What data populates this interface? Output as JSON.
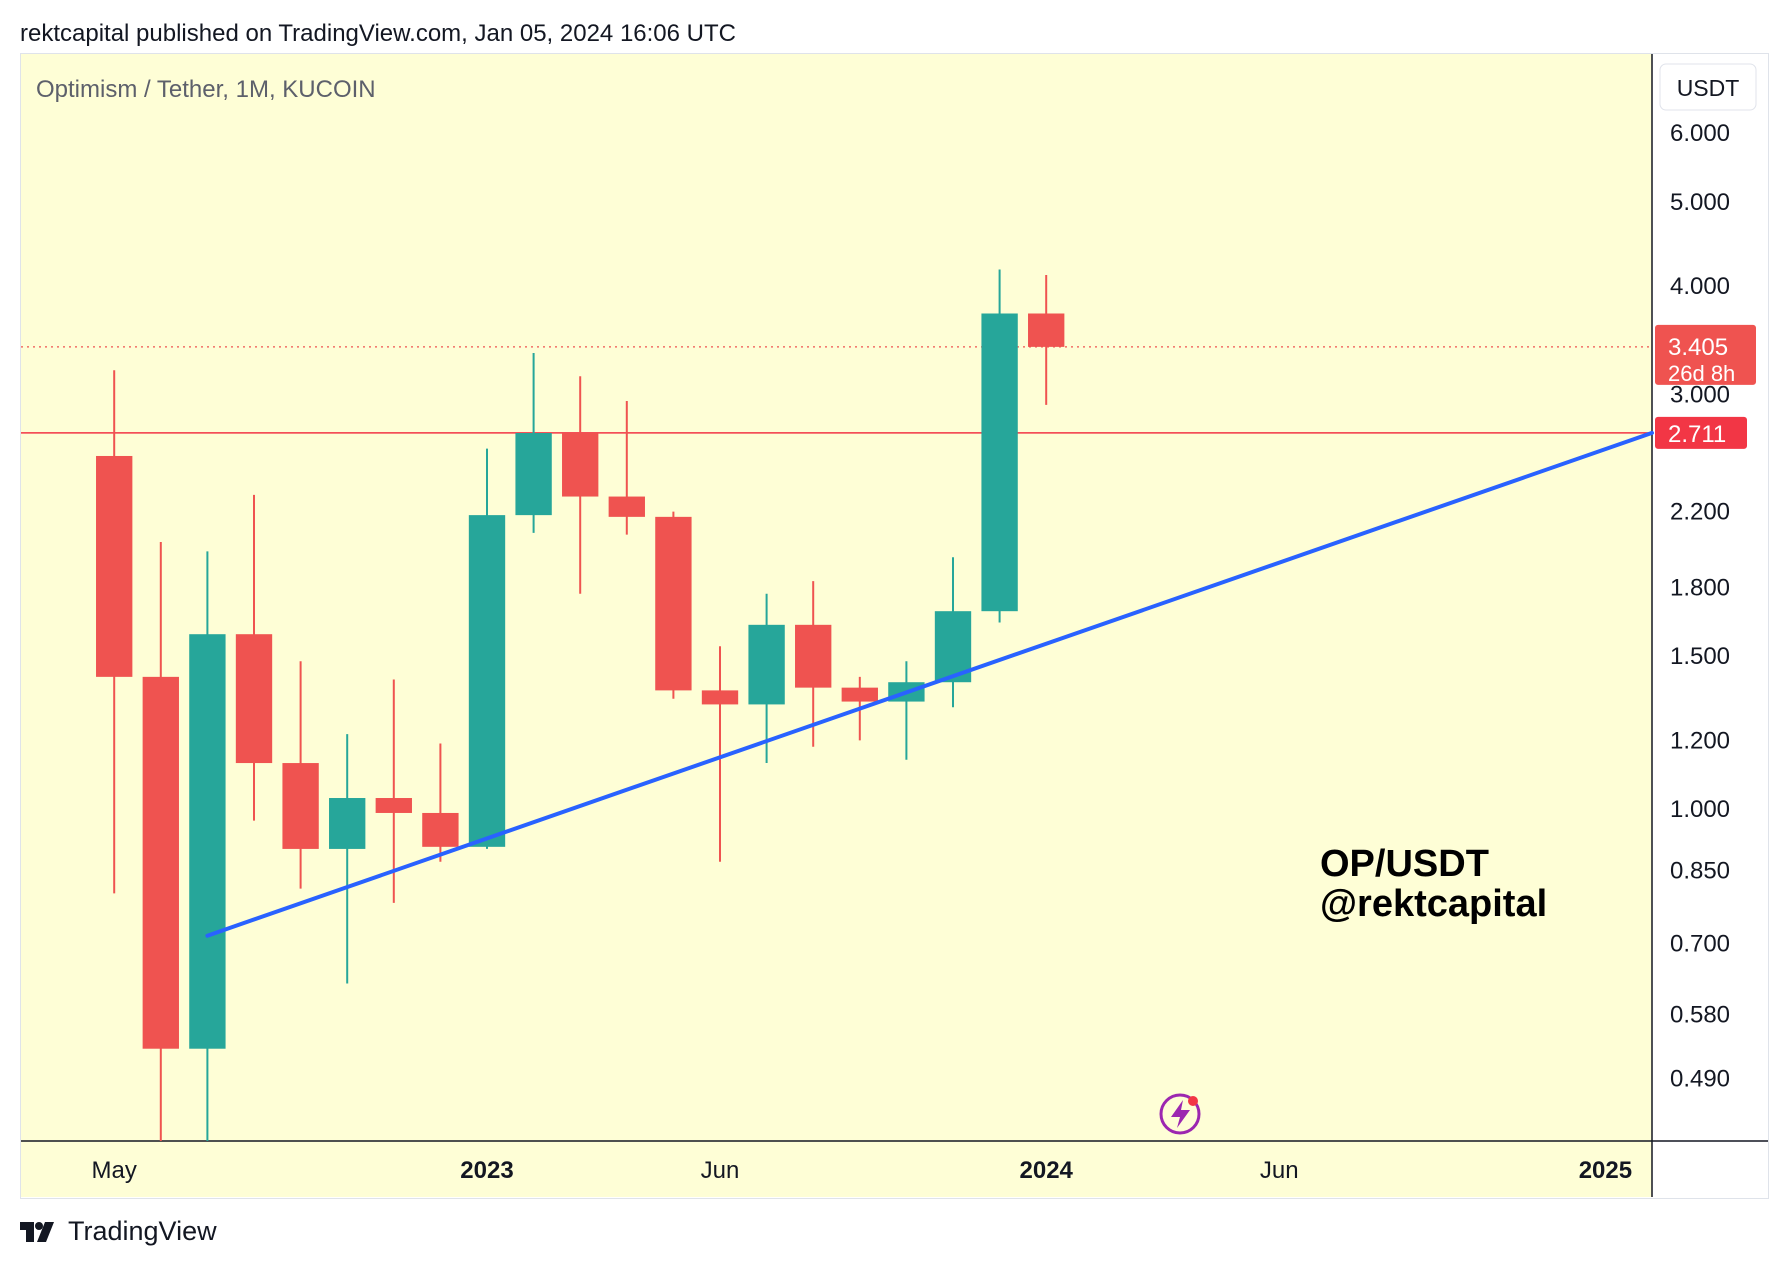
{
  "header": {
    "published_text": "rektcapital published on TradingView.com, Jan 05, 2024 16:06 UTC"
  },
  "footer": {
    "brand_label": "TradingView",
    "brand_icon": "tradingview-logo-icon"
  },
  "chart_data": {
    "type": "candlestick",
    "title": "Optimism / Tether, 1M, KUCOIN",
    "currency_label": "USDT",
    "watermark_lines": [
      "OP/USDT",
      "@rektcapital"
    ],
    "badge_icon": "lightning-bolt-icon",
    "y_scale": "log",
    "ylim": [
      0.415,
      7.4
    ],
    "y_ticks": [
      {
        "value": 6.0,
        "label": "6.000"
      },
      {
        "value": 5.0,
        "label": "5.000"
      },
      {
        "value": 4.0,
        "label": "4.000"
      },
      {
        "value": 3.0,
        "label": "3.000"
      },
      {
        "value": 2.2,
        "label": "2.200"
      },
      {
        "value": 1.8,
        "label": "1.800"
      },
      {
        "value": 1.5,
        "label": "1.500"
      },
      {
        "value": 1.2,
        "label": "1.200"
      },
      {
        "value": 1.0,
        "label": "1.000"
      },
      {
        "value": 0.85,
        "label": "0.850"
      },
      {
        "value": 0.7,
        "label": "0.700"
      },
      {
        "value": 0.58,
        "label": "0.580"
      },
      {
        "value": 0.49,
        "label": "0.490"
      }
    ],
    "x_ticks": [
      {
        "date": "2022-05",
        "label": "May",
        "bold": false
      },
      {
        "date": "2023-01",
        "label": "2023",
        "bold": true
      },
      {
        "date": "2023-06",
        "label": "Jun",
        "bold": false
      },
      {
        "date": "2024-01",
        "label": "2024",
        "bold": true
      },
      {
        "date": "2024-06",
        "label": "Jun",
        "bold": false
      },
      {
        "date": "2025-01",
        "label": "2025",
        "bold": true
      }
    ],
    "x_range": [
      "2022-03",
      "2025-02"
    ],
    "candles": [
      {
        "date": "2022-05",
        "open": 2.55,
        "high": 3.2,
        "low": 0.8,
        "close": 1.42
      },
      {
        "date": "2022-06",
        "open": 1.42,
        "high": 2.03,
        "low": 0.415,
        "close": 0.53
      },
      {
        "date": "2022-07",
        "open": 0.53,
        "high": 1.98,
        "low": 0.415,
        "close": 1.59
      },
      {
        "date": "2022-08",
        "open": 1.59,
        "high": 2.3,
        "low": 0.97,
        "close": 1.13
      },
      {
        "date": "2022-09",
        "open": 1.13,
        "high": 1.48,
        "low": 0.81,
        "close": 0.9
      },
      {
        "date": "2022-10",
        "open": 0.9,
        "high": 1.22,
        "low": 0.63,
        "close": 1.03
      },
      {
        "date": "2022-11",
        "open": 1.03,
        "high": 1.41,
        "low": 0.78,
        "close": 0.99
      },
      {
        "date": "2022-12",
        "open": 0.99,
        "high": 1.19,
        "low": 0.87,
        "close": 0.905
      },
      {
        "date": "2023-01",
        "open": 0.905,
        "high": 2.6,
        "low": 0.9,
        "close": 2.18
      },
      {
        "date": "2023-02",
        "open": 2.18,
        "high": 3.35,
        "low": 2.08,
        "close": 2.71
      },
      {
        "date": "2023-03",
        "open": 2.71,
        "high": 3.15,
        "low": 1.77,
        "close": 2.29
      },
      {
        "date": "2023-04",
        "open": 2.29,
        "high": 2.95,
        "low": 2.07,
        "close": 2.17
      },
      {
        "date": "2023-05",
        "open": 2.17,
        "high": 2.2,
        "low": 1.34,
        "close": 1.37
      },
      {
        "date": "2023-06",
        "open": 1.37,
        "high": 1.54,
        "low": 0.87,
        "close": 1.32
      },
      {
        "date": "2023-07",
        "open": 1.32,
        "high": 1.77,
        "low": 1.13,
        "close": 1.63
      },
      {
        "date": "2023-08",
        "open": 1.63,
        "high": 1.83,
        "low": 1.18,
        "close": 1.38
      },
      {
        "date": "2023-09",
        "open": 1.38,
        "high": 1.42,
        "low": 1.2,
        "close": 1.33
      },
      {
        "date": "2023-10",
        "open": 1.33,
        "high": 1.48,
        "low": 1.14,
        "close": 1.4
      },
      {
        "date": "2023-11",
        "open": 1.4,
        "high": 1.95,
        "low": 1.31,
        "close": 1.69
      },
      {
        "date": "2023-12",
        "open": 1.69,
        "high": 4.18,
        "low": 1.64,
        "close": 3.72
      },
      {
        "date": "2024-01",
        "open": 3.72,
        "high": 4.12,
        "low": 2.92,
        "close": 3.405
      }
    ],
    "trendline": {
      "from": {
        "date": "2022-07",
        "value": 0.715
      },
      "to": {
        "date": "2025-02",
        "value": 2.711
      }
    },
    "horizontal_level": {
      "value": 2.711,
      "label": "2.711",
      "color": "#f23645"
    },
    "last_price": {
      "value": 3.405,
      "label": "3.405",
      "countdown": "26d 8h"
    },
    "colors": {
      "background": "#fefed6",
      "up": "#26a69a",
      "down": "#ef5350",
      "trendline": "#2962ff",
      "axis_line": "#131722",
      "text": "#131722",
      "muted_text": "#5d606b"
    }
  }
}
